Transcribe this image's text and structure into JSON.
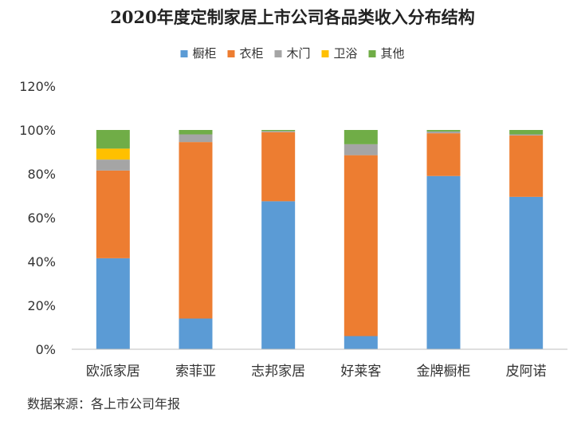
{
  "chart_data": {
    "type": "bar",
    "stacked": true,
    "title": "2020年度定制家居上市公司各品类收入分布结构",
    "categories": [
      "欧派家居",
      "索菲亚",
      "志邦家居",
      "好莱客",
      "金牌橱柜",
      "皮阿诺"
    ],
    "series": [
      {
        "name": "橱柜",
        "color": "#5B9BD5",
        "values": [
          41.5,
          14,
          67.5,
          6,
          79,
          69.5
        ]
      },
      {
        "name": "衣柜",
        "color": "#ED7D31",
        "values": [
          40,
          80.5,
          31.5,
          82.5,
          19.5,
          28
        ]
      },
      {
        "name": "木门",
        "color": "#A5A5A5",
        "values": [
          5,
          3.5,
          0.5,
          5,
          0.8,
          0.5
        ]
      },
      {
        "name": "卫浴",
        "color": "#FFC000",
        "values": [
          5,
          0,
          0,
          0,
          0,
          0
        ]
      },
      {
        "name": "其他",
        "color": "#70AD47",
        "values": [
          8.5,
          2,
          0.5,
          6.5,
          0.7,
          2
        ]
      }
    ],
    "ylim": [
      0,
      120
    ],
    "yticks": [
      0,
      20,
      40,
      60,
      80,
      100,
      120
    ],
    "ytick_labels": [
      "0%",
      "20%",
      "40%",
      "60%",
      "80%",
      "100%",
      "120%"
    ],
    "legend_position": "top-center",
    "grid": false,
    "xlabel": "",
    "ylabel": ""
  },
  "source_note": "数据来源：各上市公司年报"
}
